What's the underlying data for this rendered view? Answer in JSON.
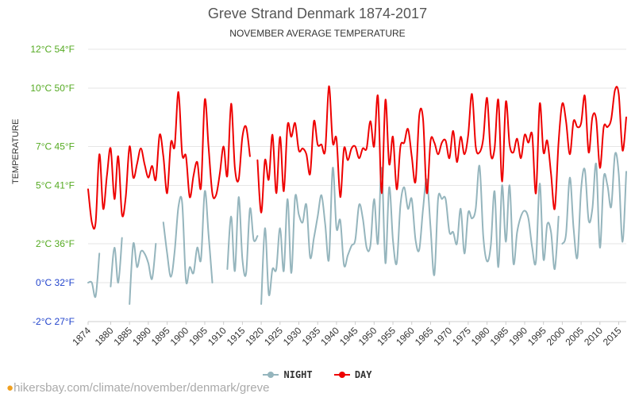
{
  "chart_data": {
    "type": "line",
    "title": "Greve Strand Denmark 1874-2017",
    "subtitle": "NOVEMBER AVERAGE TEMPERATURE",
    "ylabel": "TEMPERATURE",
    "xlabel": "",
    "ylim": [
      -2,
      12
    ],
    "xlim": [
      1874,
      2017
    ],
    "grid": true,
    "legend_position": "bottom-center",
    "y_ticks": [
      {
        "value": 12,
        "label": "12°C 54°F",
        "color": "#55aa22"
      },
      {
        "value": 10,
        "label": "10°C 50°F",
        "color": "#55aa22"
      },
      {
        "value": 7,
        "label": "7°C 45°F",
        "color": "#55aa22"
      },
      {
        "value": 5,
        "label": "5°C 41°F",
        "color": "#55aa22"
      },
      {
        "value": 2,
        "label": "2°C 36°F",
        "color": "#55aa22"
      },
      {
        "value": 0,
        "label": "0°C 32°F",
        "color": "#2244cc"
      },
      {
        "value": -2,
        "label": "-2°C 27°F",
        "color": "#2244cc"
      }
    ],
    "x_ticks": [
      "1874",
      "1880",
      "1885",
      "1890",
      "1895",
      "1900",
      "1905",
      "1910",
      "1915",
      "1920",
      "1925",
      "1930",
      "1935",
      "1940",
      "1945",
      "1950",
      "1955",
      "1960",
      "1965",
      "1970",
      "1975",
      "1980",
      "1985",
      "1990",
      "1995",
      "2000",
      "2005",
      "2010",
      "2015"
    ],
    "series": [
      {
        "name": "NIGHT",
        "color": "#95b5bd",
        "segments": [
          {
            "start": 1874,
            "values": [
              0,
              0,
              -0.7,
              1.5
            ]
          },
          {
            "start": 1880,
            "values": [
              -0.2,
              1.8,
              0,
              2.3
            ]
          },
          {
            "start": 1885,
            "values": [
              -1.1,
              2.0,
              0.8,
              1.6,
              1.5,
              1.0,
              0.2,
              2.0
            ]
          },
          {
            "start": 1894,
            "values": [
              3.1,
              1.5,
              0.3,
              1.6,
              3.9,
              4.1,
              0.1,
              0.8,
              0.5,
              1.8,
              1.2,
              4.7,
              2.5,
              0
            ]
          },
          {
            "start": 1911,
            "values": [
              0.7,
              3.4,
              0.6,
              4.4,
              1.2,
              0.5,
              3.8,
              2.2,
              2.4
            ]
          },
          {
            "start": 1920,
            "values": [
              -1.1,
              2.8,
              -0.6,
              0.7,
              0.7,
              2.8,
              0.6,
              4.3,
              0.5,
              4.4,
              3.5,
              3.1,
              4.0,
              1.3,
              2.3,
              3.4,
              4.5,
              3.0,
              1.2,
              5.9,
              2.8,
              3.2,
              0.9,
              1.4,
              1.9,
              2.2,
              4.0,
              3.3,
              1.8,
              1.9,
              4.3,
              2.0,
              5.9,
              1.0,
              4.9,
              2.2,
              1.0,
              4.0,
              4.9,
              3.8,
              4.3,
              2.2,
              1.7,
              3.8,
              5.3,
              2.8,
              0.4,
              4.3,
              4.3,
              4.3,
              2.6,
              2.6,
              2.0,
              3.8,
              1.5,
              3.6,
              3.3,
              3.8,
              6.0,
              2.4,
              1.1,
              1.9,
              4.7,
              0.8,
              5.0,
              2.1,
              5.0,
              1.0,
              2.6,
              3.4,
              3.7,
              3.3,
              1.8,
              1.1,
              5.1,
              1.2,
              3.0,
              2.6,
              0.7,
              3.4
            ]
          },
          {
            "start": 2000,
            "values": [
              2.0,
              2.5,
              5.4,
              2.8,
              1.3,
              4.8,
              5.8,
              3.2,
              3.8,
              6.1,
              1.8,
              5.4,
              5.0,
              3.9,
              6.6,
              5.6,
              2.1,
              5.7
            ]
          }
        ]
      },
      {
        "name": "DAY",
        "color": "#ee0000",
        "segments": [
          {
            "start": 1874,
            "values": [
              4.8,
              3.1,
              3.1,
              6.6,
              3.8,
              5.5,
              6.9,
              4.3,
              6.5,
              3.5,
              4.4,
              7.0,
              5.4,
              6.1,
              6.9,
              6.1,
              5.4,
              6.0,
              5.3,
              7.6,
              6.5,
              4.6,
              7.2,
              7.0,
              9.8,
              6.6,
              6.5,
              4.4,
              5.5,
              6.2,
              4.9,
              9.4,
              7.0,
              4.6,
              4.5,
              5.6,
              7.0,
              5.5,
              9.2,
              5.9,
              5.3,
              7.5,
              8.0,
              6.5
            ]
          },
          {
            "start": 1919,
            "values": [
              6.3,
              3.6,
              6.3,
              5.3,
              7.6,
              4.6,
              7.5,
              4.7,
              8.1,
              7.5,
              8.2,
              6.8,
              6.9,
              6.6,
              5.6,
              8.3,
              7.1,
              7.1,
              6.8,
              10.1,
              7.2,
              7.4,
              4.4,
              6.9,
              6.3,
              6.9,
              7.0,
              6.4,
              6.9,
              6.9,
              8.3,
              7.0,
              9.6,
              4.6,
              9.4,
              6.1,
              7.5,
              4.8,
              7.0,
              7.2,
              7.9,
              6.5,
              5.2,
              8.6,
              8.4,
              4.6,
              7.3,
              7.2,
              6.6,
              7.2,
              7.3,
              6.4,
              7.8,
              6.2,
              7.5,
              6.6,
              7.6,
              9.7,
              7.0,
              6.7,
              7.4,
              9.5,
              6.6,
              6.9,
              9.4,
              5.2,
              9.3,
              7.1,
              6.7,
              7.4,
              6.4,
              7.6,
              7.2,
              7.6,
              4.6,
              9.2,
              6.7,
              7.3,
              5.6,
              3.8,
              7.2,
              9.2,
              8.3,
              6.6,
              8.3,
              8.0,
              8.2,
              9.6,
              6.7,
              8.5,
              8.4,
              5.9,
              8.0,
              8.0,
              8.4,
              9.9,
              9.7,
              6.8,
              8.5
            ]
          }
        ]
      }
    ]
  },
  "legend": {
    "night": "NIGHT",
    "day": "DAY"
  },
  "footer": {
    "pin_icon": "location-pin-icon",
    "text": "hikersbay.com/climate/november/denmark/greve"
  }
}
